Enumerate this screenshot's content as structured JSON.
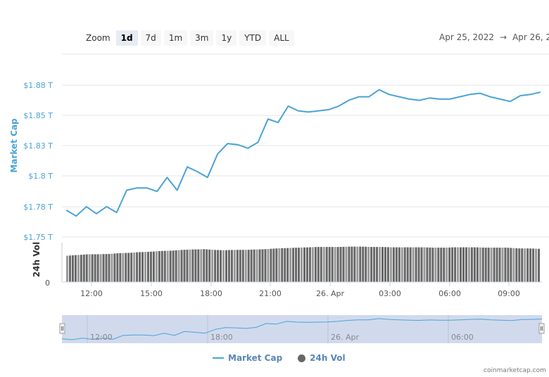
{
  "zoom": {
    "label": "Zoom",
    "buttons": [
      {
        "label": "1d",
        "active": true
      },
      {
        "label": "7d",
        "active": false
      },
      {
        "label": "1m",
        "active": false
      },
      {
        "label": "3m",
        "active": false
      },
      {
        "label": "1y",
        "active": false
      },
      {
        "label": "YTD",
        "active": false
      },
      {
        "label": "ALL",
        "active": false
      }
    ]
  },
  "date_range": {
    "from": "Apr 25, 2022",
    "arrow": "→",
    "to": "Apr 26, 2"
  },
  "legend": {
    "market_cap": "Market Cap",
    "vol": "24h Vol"
  },
  "credit": "coinmarketcap.com",
  "colors": {
    "line": "#4aa3d6",
    "bars": "#666666",
    "navigator_bg": "#ccd6eb",
    "grid": "#e6e6e6"
  },
  "chart_data": {
    "type": "line",
    "title": "",
    "ylabel": "Market Cap",
    "ylabel2": "24h Vol",
    "y_ticks": [
      "$1.88 T",
      "$1.85 T",
      "$1.83 T",
      "$1.8 T",
      "$1.78 T",
      "$1.75 T"
    ],
    "y2_ticks": [
      "0"
    ],
    "x_ticks": [
      "12:00",
      "15:00",
      "18:00",
      "21:00",
      "26. Apr",
      "03:00",
      "06:00",
      "09:00"
    ],
    "navigator_ticks": [
      "12:00",
      "18:00",
      "26. Apr",
      "06:00"
    ],
    "ylim": [
      1.75,
      1.88
    ],
    "grid": true,
    "legend_position": "bottom",
    "series": [
      {
        "name": "Market Cap",
        "unit": "$T",
        "x": [
          "11:00",
          "11:30",
          "12:00",
          "12:30",
          "13:00",
          "13:30",
          "14:00",
          "14:30",
          "15:00",
          "15:30",
          "16:00",
          "16:30",
          "17:00",
          "17:30",
          "18:00",
          "18:30",
          "19:00",
          "19:30",
          "20:00",
          "20:30",
          "21:00",
          "21:30",
          "22:00",
          "22:30",
          "23:00",
          "23:30",
          "00:00",
          "00:30",
          "01:00",
          "01:30",
          "02:00",
          "02:30",
          "03:00",
          "03:30",
          "04:00",
          "04:30",
          "05:00",
          "05:30",
          "06:00",
          "06:30",
          "07:00",
          "07:30",
          "08:00",
          "08:30",
          "09:00",
          "09:30",
          "10:00",
          "10:30"
        ],
        "values": [
          1.773,
          1.768,
          1.776,
          1.77,
          1.776,
          1.771,
          1.79,
          1.792,
          1.792,
          1.789,
          1.801,
          1.79,
          1.81,
          1.806,
          1.801,
          1.821,
          1.83,
          1.829,
          1.826,
          1.831,
          1.851,
          1.848,
          1.862,
          1.858,
          1.857,
          1.858,
          1.859,
          1.862,
          1.867,
          1.87,
          1.87,
          1.876,
          1.872,
          1.87,
          1.868,
          1.867,
          1.869,
          1.868,
          1.868,
          1.87,
          1.872,
          1.873,
          1.87,
          1.868,
          1.866,
          1.871,
          1.872,
          1.874
        ]
      },
      {
        "name": "24h Vol",
        "type": "bar",
        "relative_heights": [
          0.72,
          0.74,
          0.76,
          0.76,
          0.77,
          0.79,
          0.8,
          0.82,
          0.83,
          0.85,
          0.86,
          0.88,
          0.89,
          0.9,
          0.88,
          0.87,
          0.88,
          0.88,
          0.89,
          0.9,
          0.92,
          0.93,
          0.94,
          0.95,
          0.96,
          0.96,
          0.96,
          0.97,
          0.97,
          0.96,
          0.96,
          0.95,
          0.95,
          0.95,
          0.95,
          0.94,
          0.94,
          0.95,
          0.95,
          0.95,
          0.94,
          0.94,
          0.94,
          0.92,
          0.92,
          0.91
        ]
      }
    ]
  }
}
